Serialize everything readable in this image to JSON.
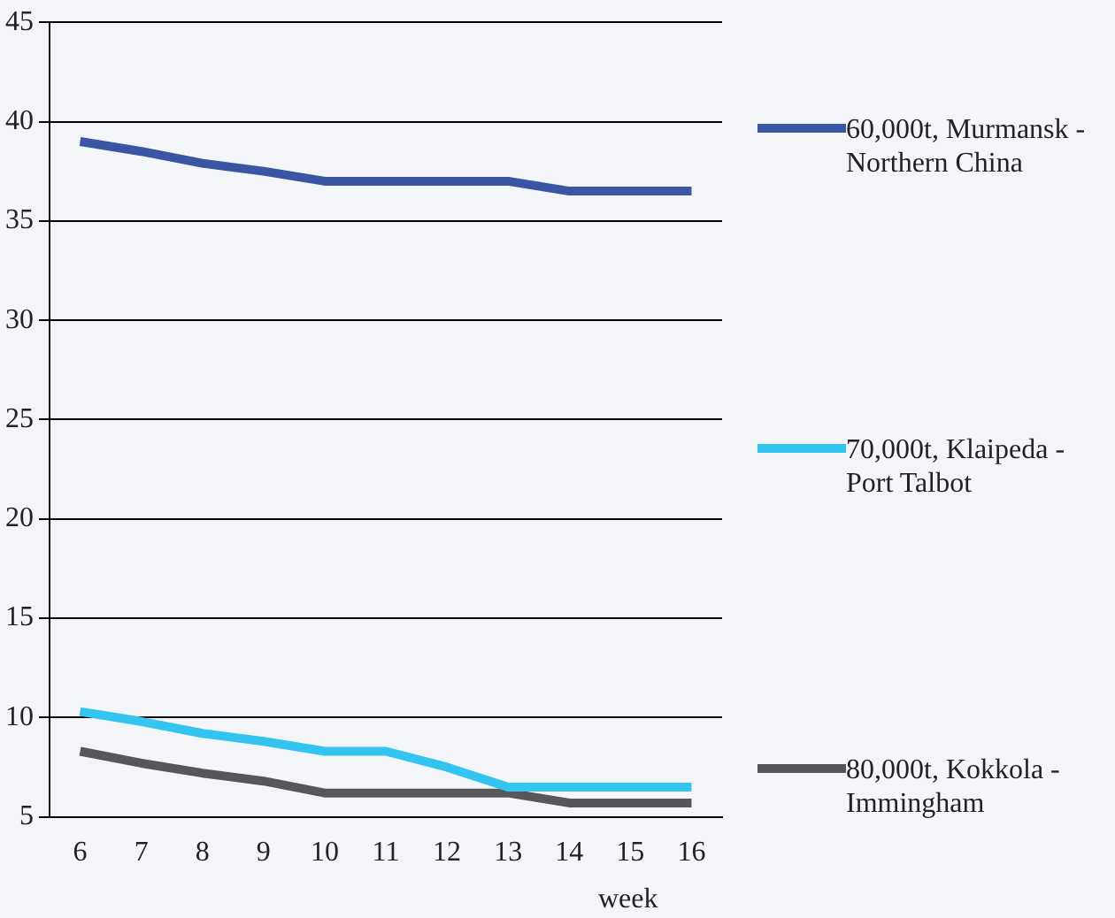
{
  "chart_data": {
    "type": "line",
    "xlabel": "week",
    "categories": [
      "6",
      "7",
      "8",
      "9",
      "10",
      "11",
      "12",
      "13",
      "14",
      "15",
      "16"
    ],
    "series": [
      {
        "name": "60,000t, Murmansk - Northern China",
        "color": "#3a55a4",
        "values": [
          39,
          38.5,
          37.9,
          37.5,
          37,
          37,
          37,
          37,
          36.5,
          36.5,
          36.5
        ]
      },
      {
        "name": "70,000t, Klaipeda - Port Talbot",
        "color": "#33c4f0",
        "values": [
          10.3,
          9.8,
          9.2,
          8.8,
          8.3,
          8.3,
          7.5,
          6.5,
          6.5,
          6.5,
          6.5
        ]
      },
      {
        "name": "80,000t, Kokkola - Immingham",
        "color": "#555759",
        "values": [
          8.3,
          7.7,
          7.2,
          6.8,
          6.2,
          6.2,
          6.2,
          6.2,
          5.7,
          5.7,
          5.7
        ]
      }
    ],
    "ylim": [
      5,
      45
    ],
    "yticks": [
      5,
      10,
      15,
      20,
      25,
      30,
      35,
      40,
      45
    ],
    "grid": "y",
    "legend": "right",
    "marker": "none"
  }
}
